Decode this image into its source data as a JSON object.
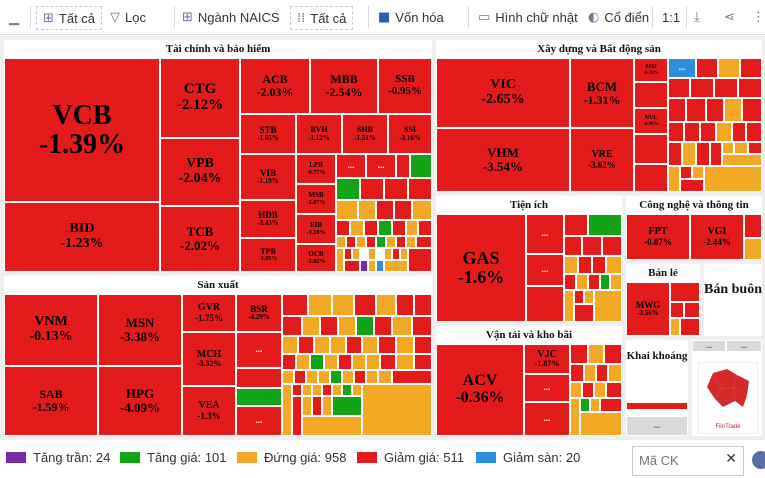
{
  "toolbar": {
    "back_icon": "minimize-icon",
    "all1": "Tất cả",
    "filter": "Lọc",
    "naics": "Ngành NAICS",
    "all2": "Tất cả",
    "cap": "Vốn hóa",
    "rect": "Hình chữ nhật",
    "classic": "Cổ điển",
    "ratio": "1:1"
  },
  "sectors": {
    "finance": "Tài chính và bảo hiểm",
    "realestate": "Xây dựng và Bất động sản",
    "manufacturing": "Sản xuất",
    "utilities": "Tiện ích",
    "tech": "Công nghệ và thông tin",
    "retail": "Bán lẻ",
    "wholesale": "Bán buôn",
    "transport": "Vận tải và kho bãi",
    "mining": "Khai khoáng"
  },
  "tiles": {
    "vcb": {
      "t": "VCB",
      "v": "-1.39%"
    },
    "bid": {
      "t": "BID",
      "v": "-1.23%"
    },
    "ctg": {
      "t": "CTG",
      "v": "-2.12%"
    },
    "vpb": {
      "t": "VPB",
      "v": "-2.04%"
    },
    "tcb": {
      "t": "TCB",
      "v": "-2.02%"
    },
    "acb": {
      "t": "ACB",
      "v": "-2.03%"
    },
    "mbb": {
      "t": "MBB",
      "v": "-2.54%"
    },
    "ssb": {
      "t": "SSB",
      "v": "-0.95%"
    },
    "stb": {
      "t": "STB",
      "v": "-1.65%"
    },
    "bvh": {
      "t": "BVH",
      "v": "-1.12%"
    },
    "shb": {
      "t": "SHB",
      "v": "-1.51%"
    },
    "ssi": {
      "t": "SSI",
      "v": "-3.16%"
    },
    "vib": {
      "t": "VIB",
      "v": "-1.19%"
    },
    "lpb": {
      "t": "LPB",
      "v": "-0.77%"
    },
    "hdb": {
      "t": "HDB",
      "v": "-3.43%"
    },
    "msb": {
      "t": "MSB",
      "v": "-2.87%"
    },
    "eib": {
      "t": "EIB",
      "v": "-1.18%"
    },
    "tpb": {
      "t": "TPB",
      "v": "-3.95%"
    },
    "ocb": {
      "t": "OCB",
      "v": "-2.02%"
    },
    "vic": {
      "t": "VIC",
      "v": "-2.65%"
    },
    "vhm": {
      "t": "VHM",
      "v": "-3.54%"
    },
    "bcm": {
      "t": "BCM",
      "v": "-1.31%"
    },
    "vre": {
      "t": "VRE",
      "v": "-3.02%"
    },
    "ssh": {
      "t": "SSH",
      "v": "-6.79%"
    },
    "nvl": {
      "t": "NVL",
      "v": "-6.90%"
    },
    "vnm": {
      "t": "VNM",
      "v": "-0.13%"
    },
    "sab": {
      "t": "SAB",
      "v": "-1.59%"
    },
    "msn": {
      "t": "MSN",
      "v": "-3.38%"
    },
    "hpg": {
      "t": "HPG",
      "v": "-4.09%"
    },
    "gvr": {
      "t": "GVR",
      "v": "-1.75%"
    },
    "mch": {
      "t": "MCH",
      "v": "-3.32%"
    },
    "vea": {
      "t": "VEA",
      "v": "-1.3%"
    },
    "bsr": {
      "t": "BSR",
      "v": "-4.29%"
    },
    "gas": {
      "t": "GAS",
      "v": "-1.6%"
    },
    "fpt": {
      "t": "FPT",
      "v": "-0.87%"
    },
    "vgi": {
      "t": "VGI",
      "v": "-2.44%"
    },
    "mwg": {
      "t": "MWG",
      "v": "-3.56%"
    },
    "acv": {
      "t": "ACV",
      "v": "-0.36%"
    },
    "vjc": {
      "t": "VJC",
      "v": "-1.87%"
    }
  },
  "ellipsis": "...",
  "logo_text": "FiinTrade",
  "legend": {
    "ceiling": "Tăng trần: 24",
    "up": "Tăng giá: 101",
    "flat": "Đứng giá: 958",
    "down": "Giảm giá: 511",
    "floor": "Giảm sàn: 20"
  },
  "colors": {
    "ceiling": "#7a2aa7",
    "up": "#13a316",
    "flat": "#f3a925",
    "down": "#e31b1b",
    "floor": "#2b8fde"
  },
  "search": {
    "placeholder": "Mã CK"
  }
}
